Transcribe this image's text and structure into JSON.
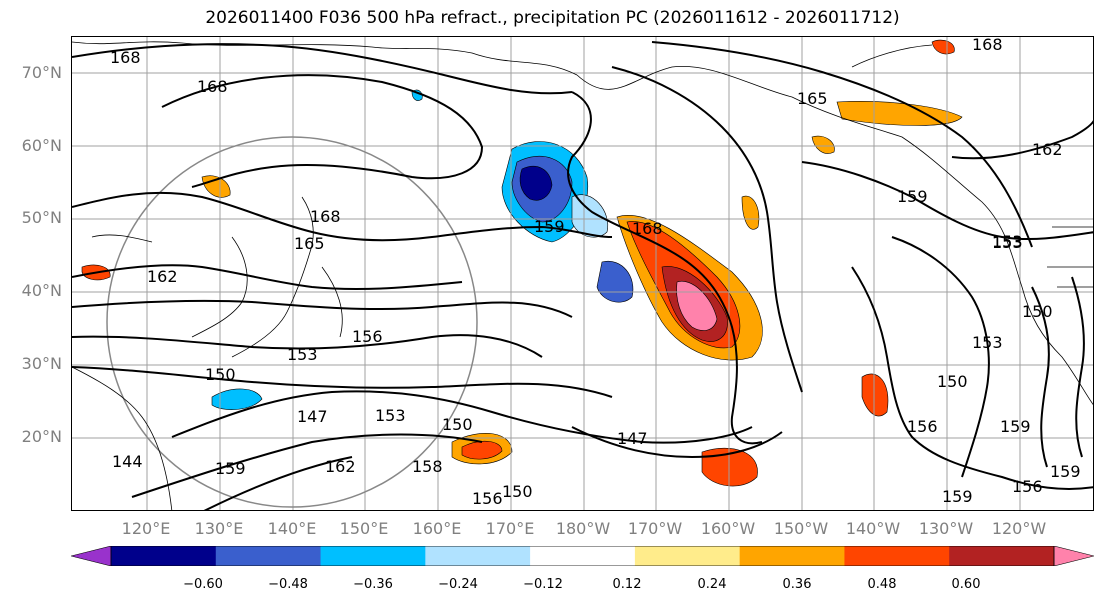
{
  "title": "2026011400 F036 500 hPa refract., precipitation PC (2026011612 - 2026011712)",
  "lat_labels": [
    "70°N",
    "60°N",
    "50°N",
    "40°N",
    "30°N",
    "20°N"
  ],
  "lon_labels": [
    "120°E",
    "130°E",
    "140°E",
    "150°E",
    "160°E",
    "170°E",
    "180°W",
    "170°W",
    "160°W",
    "150°W",
    "140°W",
    "130°W",
    "120°W"
  ],
  "contour_labels": [
    "168",
    "168",
    "168",
    "165",
    "168",
    "165",
    "162",
    "159",
    "168",
    "159",
    "153",
    "162",
    "156",
    "153",
    "150",
    "147",
    "153",
    "150",
    "147",
    "144",
    "159",
    "162",
    "158",
    "156",
    "150",
    "153",
    "150",
    "156",
    "159",
    "159",
    "156",
    "159",
    "153",
    "150"
  ],
  "colorbar": {
    "colors": [
      "#9932cc",
      "#00008b",
      "#3a5fcd",
      "#00bfff",
      "#b0e2ff",
      "#ffffff",
      "#ffec8b",
      "#ffa500",
      "#ff4500",
      "#b22222",
      "#ff82ab"
    ],
    "ticks": [
      "−0.60",
      "−0.48",
      "−0.36",
      "−0.24",
      "−0.12",
      "0.12",
      "0.24",
      "0.36",
      "0.48",
      "0.60"
    ]
  }
}
